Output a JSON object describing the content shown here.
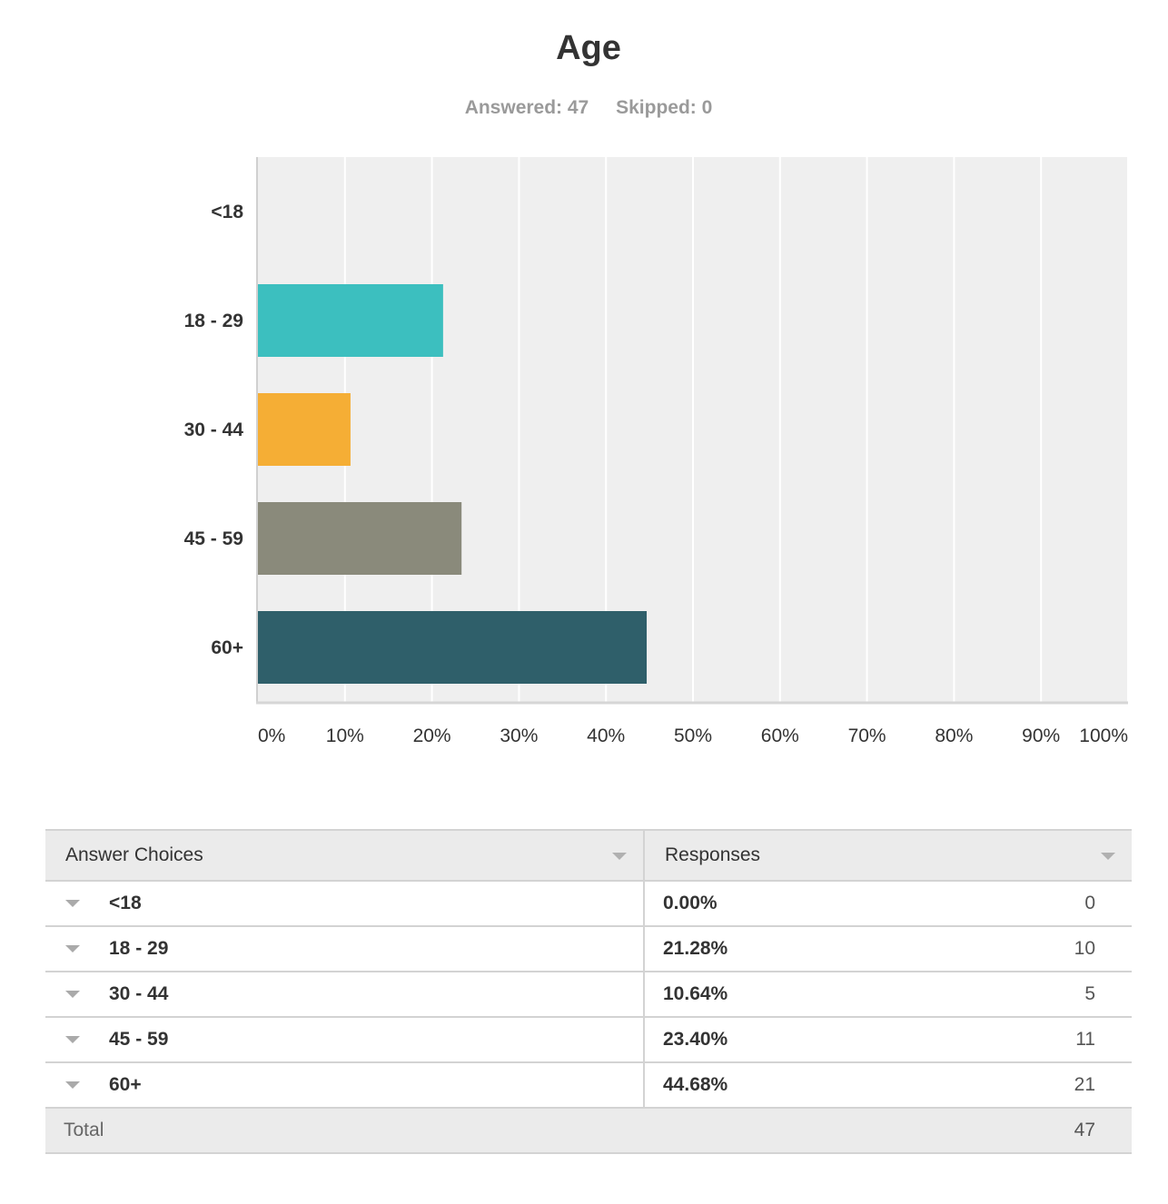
{
  "title": "Age",
  "summary": {
    "answered": "Answered: 47",
    "skipped": "Skipped: 0"
  },
  "chart_data": {
    "type": "bar",
    "orientation": "horizontal",
    "categories": [
      "<18",
      "18 - 29",
      "30 - 44",
      "45 - 59",
      "60+"
    ],
    "values": [
      0.0,
      21.28,
      10.64,
      23.4,
      44.68
    ],
    "colors": [
      "#3cbfbf",
      "#3cbfbf",
      "#f5ae35",
      "#8a8a7b",
      "#2f5f6a"
    ],
    "xlim": [
      0,
      100
    ],
    "x_ticks": [
      "0%",
      "10%",
      "20%",
      "30%",
      "40%",
      "50%",
      "60%",
      "70%",
      "80%",
      "90%",
      "100%"
    ],
    "grid": true
  },
  "table": {
    "headers": {
      "choices": "Answer Choices",
      "responses": "Responses"
    },
    "rows": [
      {
        "choice": "<18",
        "percent": "0.00%",
        "count": "0"
      },
      {
        "choice": "18 - 29",
        "percent": "21.28%",
        "count": "10"
      },
      {
        "choice": "30 - 44",
        "percent": "10.64%",
        "count": "5"
      },
      {
        "choice": "45 - 59",
        "percent": "23.40%",
        "count": "11"
      },
      {
        "choice": "60+",
        "percent": "44.68%",
        "count": "21"
      }
    ],
    "total_label": "Total",
    "total_value": "47"
  }
}
